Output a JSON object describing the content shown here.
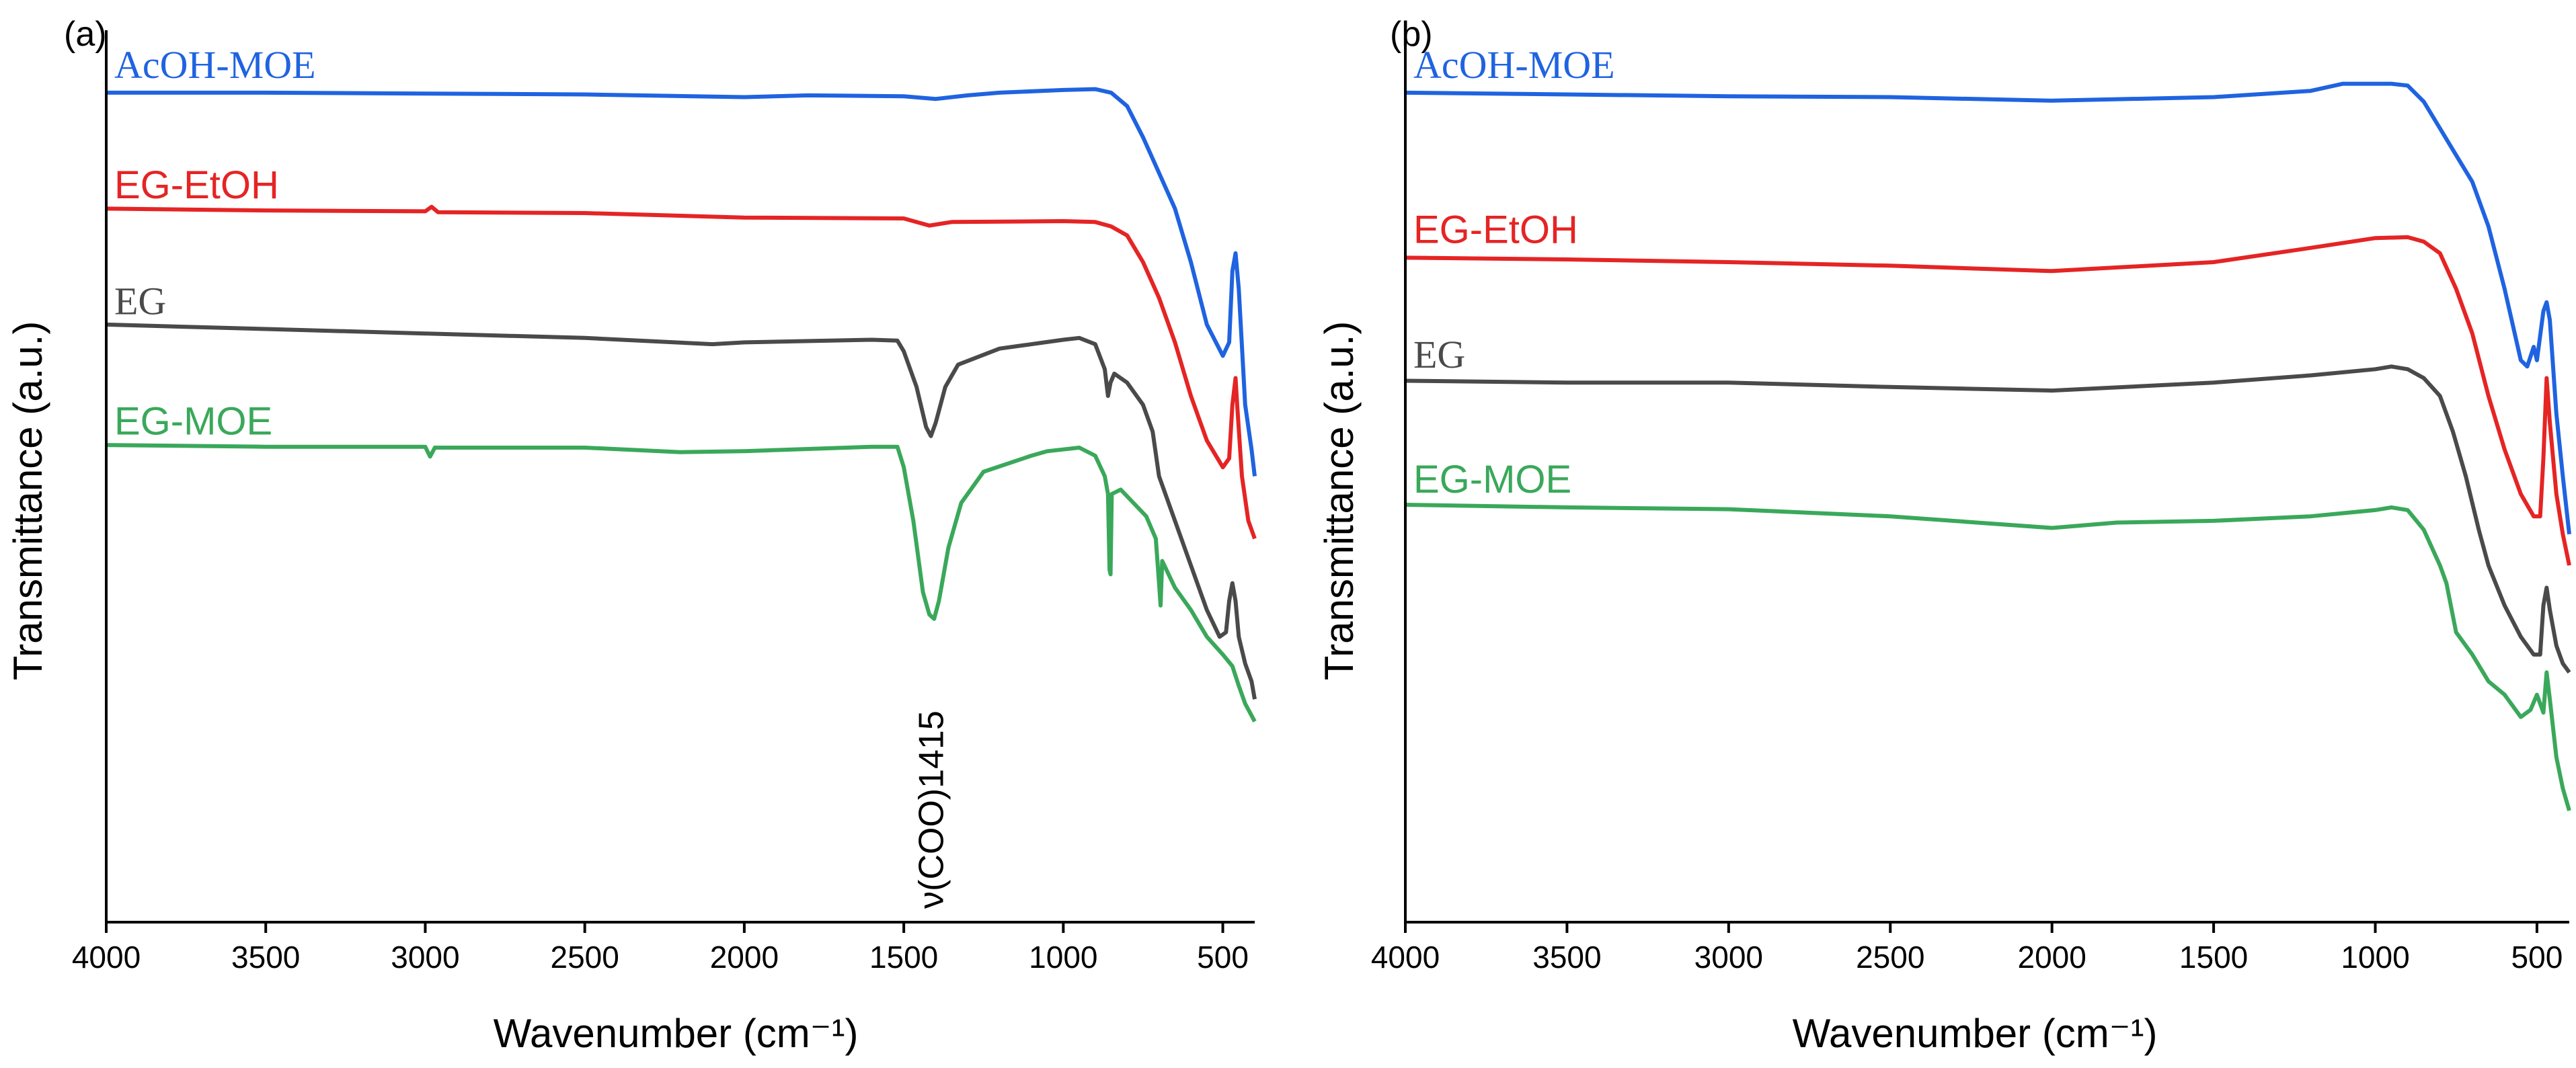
{
  "colors": {
    "blue": "#1f63e0",
    "red": "#e52424",
    "gray": "#4a4a4a",
    "green": "#3aa85a"
  },
  "chart_data": [
    {
      "type": "line",
      "panel_label": "(a)",
      "xlabel": "Wavenumber (cm⁻¹)",
      "ylabel": "Transmittance (a.u.)",
      "xlim": [
        4000,
        400
      ],
      "x_reversed": true,
      "ylim": [
        0,
        100
      ],
      "xticks": [
        4000,
        3500,
        3000,
        2500,
        2000,
        1500,
        1000,
        500
      ],
      "yticks": [],
      "grid": false,
      "legend": "inline labels above each curve",
      "annotation": {
        "text": "ν(COO)1415",
        "x": 1415
      },
      "series": [
        {
          "name": "AcOH-MOE",
          "color": "#1f63e0",
          "label_font": "serif",
          "label_y": 93,
          "points": [
            [
              4000,
              93
            ],
            [
              3500,
              93
            ],
            [
              3000,
              92.9
            ],
            [
              2500,
              92.8
            ],
            [
              2000,
              92.5
            ],
            [
              1800,
              92.7
            ],
            [
              1500,
              92.6
            ],
            [
              1400,
              92.3
            ],
            [
              1300,
              92.7
            ],
            [
              1200,
              93
            ],
            [
              1000,
              93.3
            ],
            [
              900,
              93.4
            ],
            [
              850,
              93
            ],
            [
              800,
              91.5
            ],
            [
              750,
              88
            ],
            [
              700,
              84
            ],
            [
              650,
              80
            ],
            [
              600,
              74
            ],
            [
              550,
              67
            ],
            [
              500,
              63.5
            ],
            [
              480,
              65
            ],
            [
              470,
              73
            ],
            [
              460,
              75
            ],
            [
              450,
              71
            ],
            [
              430,
              58
            ],
            [
              410,
              53
            ],
            [
              400,
              50
            ]
          ]
        },
        {
          "name": "EG-EtOH",
          "color": "#e52424",
          "label_font": "sans",
          "label_y": 79.5,
          "points": [
            [
              4000,
              80
            ],
            [
              3500,
              79.8
            ],
            [
              3000,
              79.7
            ],
            [
              2980,
              80.2
            ],
            [
              2960,
              79.6
            ],
            [
              2500,
              79.5
            ],
            [
              2000,
              79
            ],
            [
              1500,
              78.9
            ],
            [
              1420,
              78.1
            ],
            [
              1350,
              78.5
            ],
            [
              1000,
              78.6
            ],
            [
              900,
              78.5
            ],
            [
              850,
              78
            ],
            [
              800,
              77
            ],
            [
              750,
              74
            ],
            [
              700,
              70
            ],
            [
              650,
              65
            ],
            [
              600,
              59
            ],
            [
              550,
              54
            ],
            [
              500,
              51
            ],
            [
              480,
              52
            ],
            [
              470,
              58
            ],
            [
              460,
              61
            ],
            [
              455,
              58
            ],
            [
              440,
              50
            ],
            [
              420,
              45
            ],
            [
              400,
              43
            ]
          ]
        },
        {
          "name": "EG",
          "color": "#4a4a4a",
          "label_font": "serif",
          "label_y": 66.5,
          "points": [
            [
              4000,
              67
            ],
            [
              3500,
              66.5
            ],
            [
              3000,
              66
            ],
            [
              2500,
              65.5
            ],
            [
              2100,
              64.8
            ],
            [
              2000,
              65
            ],
            [
              1600,
              65.3
            ],
            [
              1520,
              65.2
            ],
            [
              1500,
              64
            ],
            [
              1460,
              60
            ],
            [
              1430,
              55.5
            ],
            [
              1415,
              54.5
            ],
            [
              1400,
              56
            ],
            [
              1370,
              60
            ],
            [
              1330,
              62.5
            ],
            [
              1200,
              64.3
            ],
            [
              1000,
              65.3
            ],
            [
              950,
              65.5
            ],
            [
              900,
              64.8
            ],
            [
              870,
              62
            ],
            [
              860,
              59
            ],
            [
              852,
              60.5
            ],
            [
              840,
              61.5
            ],
            [
              800,
              60.5
            ],
            [
              750,
              58
            ],
            [
              720,
              55
            ],
            [
              700,
              50
            ],
            [
              650,
              45
            ],
            [
              600,
              40
            ],
            [
              550,
              35
            ],
            [
              510,
              32
            ],
            [
              490,
              32.5
            ],
            [
              480,
              36
            ],
            [
              470,
              38
            ],
            [
              460,
              36
            ],
            [
              450,
              32
            ],
            [
              430,
              29
            ],
            [
              410,
              27
            ],
            [
              400,
              25
            ]
          ]
        },
        {
          "name": "EG-MOE",
          "color": "#3aa85a",
          "label_font": "sans",
          "label_y": 53,
          "points": [
            [
              4000,
              53.5
            ],
            [
              3500,
              53.3
            ],
            [
              3000,
              53.3
            ],
            [
              2985,
              52.2
            ],
            [
              2970,
              53.2
            ],
            [
              2500,
              53.2
            ],
            [
              2200,
              52.7
            ],
            [
              2000,
              52.8
            ],
            [
              1600,
              53.3
            ],
            [
              1520,
              53.3
            ],
            [
              1500,
              51
            ],
            [
              1470,
              45
            ],
            [
              1440,
              37
            ],
            [
              1420,
              34.5
            ],
            [
              1405,
              34
            ],
            [
              1390,
              36
            ],
            [
              1360,
              42
            ],
            [
              1320,
              47
            ],
            [
              1250,
              50.5
            ],
            [
              1100,
              52.3
            ],
            [
              1050,
              52.8
            ],
            [
              1000,
              53
            ],
            [
              950,
              53.2
            ],
            [
              900,
              52.3
            ],
            [
              870,
              50
            ],
            [
              860,
              48
            ],
            [
              855,
              39.5
            ],
            [
              852,
              39
            ],
            [
              848,
              48
            ],
            [
              820,
              48.5
            ],
            [
              780,
              47
            ],
            [
              740,
              45.5
            ],
            [
              710,
              43
            ],
            [
              700,
              38
            ],
            [
              695,
              35.5
            ],
            [
              690,
              40.5
            ],
            [
              650,
              37.5
            ],
            [
              600,
              35
            ],
            [
              550,
              32
            ],
            [
              500,
              30
            ],
            [
              470,
              28.7
            ],
            [
              450,
              26.5
            ],
            [
              430,
              24.5
            ],
            [
              400,
              22.5
            ]
          ]
        }
      ]
    },
    {
      "type": "line",
      "panel_label": "(b)",
      "xlabel": "Wavenumber (cm⁻¹)",
      "ylabel": "Transmittance (a.u.)",
      "xlim": [
        4000,
        400
      ],
      "x_reversed": true,
      "ylim": [
        0,
        100
      ],
      "xticks": [
        4000,
        3500,
        3000,
        2500,
        2000,
        1500,
        1000,
        500
      ],
      "yticks": [],
      "grid": false,
      "legend": "inline labels above each curve",
      "series": [
        {
          "name": "AcOH-MOE",
          "color": "#1f63e0",
          "label_font": "serif",
          "label_y": 93,
          "points": [
            [
              4000,
              93
            ],
            [
              3500,
              92.8
            ],
            [
              3000,
              92.6
            ],
            [
              2500,
              92.5
            ],
            [
              2000,
              92.1
            ],
            [
              1500,
              92.5
            ],
            [
              1200,
              93.2
            ],
            [
              1100,
              94
            ],
            [
              950,
              94
            ],
            [
              900,
              93.8
            ],
            [
              850,
              92
            ],
            [
              800,
              89
            ],
            [
              750,
              86
            ],
            [
              700,
              83
            ],
            [
              650,
              78
            ],
            [
              600,
              71
            ],
            [
              550,
              63
            ],
            [
              530,
              62.3
            ],
            [
              510,
              64.5
            ],
            [
              500,
              63
            ],
            [
              480,
              68.5
            ],
            [
              470,
              69.5
            ],
            [
              460,
              67.5
            ],
            [
              440,
              57
            ],
            [
              420,
              50
            ],
            [
              400,
              43.5
            ]
          ]
        },
        {
          "name": "EG-EtOH",
          "color": "#e52424",
          "label_font": "sans",
          "label_y": 74.5,
          "points": [
            [
              4000,
              74.5
            ],
            [
              3500,
              74.3
            ],
            [
              3000,
              74
            ],
            [
              2500,
              73.6
            ],
            [
              2000,
              73
            ],
            [
              1500,
              74
            ],
            [
              1200,
              75.6
            ],
            [
              1000,
              76.7
            ],
            [
              900,
              76.8
            ],
            [
              850,
              76.3
            ],
            [
              800,
              75
            ],
            [
              750,
              71
            ],
            [
              700,
              66
            ],
            [
              650,
              59
            ],
            [
              600,
              53
            ],
            [
              550,
              48
            ],
            [
              510,
              45.5
            ],
            [
              490,
              45.5
            ],
            [
              480,
              52
            ],
            [
              470,
              61
            ],
            [
              460,
              56
            ],
            [
              440,
              48
            ],
            [
              420,
              43.5
            ],
            [
              400,
              40
            ]
          ]
        },
        {
          "name": "EG",
          "color": "#4a4a4a",
          "label_font": "serif",
          "label_y": 60.5,
          "points": [
            [
              4000,
              60.7
            ],
            [
              3500,
              60.5
            ],
            [
              3000,
              60.5
            ],
            [
              2500,
              60
            ],
            [
              2000,
              59.6
            ],
            [
              1500,
              60.5
            ],
            [
              1200,
              61.3
            ],
            [
              1000,
              62
            ],
            [
              950,
              62.3
            ],
            [
              900,
              62
            ],
            [
              850,
              61
            ],
            [
              800,
              59
            ],
            [
              760,
              55
            ],
            [
              720,
              50
            ],
            [
              680,
              44
            ],
            [
              650,
              40
            ],
            [
              600,
              35.5
            ],
            [
              550,
              32
            ],
            [
              510,
              30
            ],
            [
              490,
              30
            ],
            [
              480,
              35.5
            ],
            [
              470,
              37.5
            ],
            [
              460,
              35
            ],
            [
              440,
              31
            ],
            [
              420,
              29
            ],
            [
              400,
              28
            ]
          ]
        },
        {
          "name": "EG-MOE",
          "color": "#3aa85a",
          "label_font": "sans",
          "label_y": 46.5,
          "points": [
            [
              4000,
              46.8
            ],
            [
              3500,
              46.5
            ],
            [
              3000,
              46.3
            ],
            [
              2500,
              45.5
            ],
            [
              2000,
              44.2
            ],
            [
              1800,
              44.8
            ],
            [
              1500,
              45
            ],
            [
              1200,
              45.5
            ],
            [
              1000,
              46.2
            ],
            [
              950,
              46.5
            ],
            [
              900,
              46.2
            ],
            [
              850,
              44
            ],
            [
              800,
              40
            ],
            [
              780,
              38
            ],
            [
              750,
              32.5
            ],
            [
              700,
              30
            ],
            [
              650,
              27
            ],
            [
              600,
              25.5
            ],
            [
              550,
              23
            ],
            [
              520,
              23.8
            ],
            [
              500,
              25.5
            ],
            [
              480,
              23.5
            ],
            [
              470,
              28
            ],
            [
              460,
              25
            ],
            [
              440,
              18.5
            ],
            [
              420,
              15
            ],
            [
              400,
              12.5
            ]
          ]
        }
      ]
    }
  ]
}
